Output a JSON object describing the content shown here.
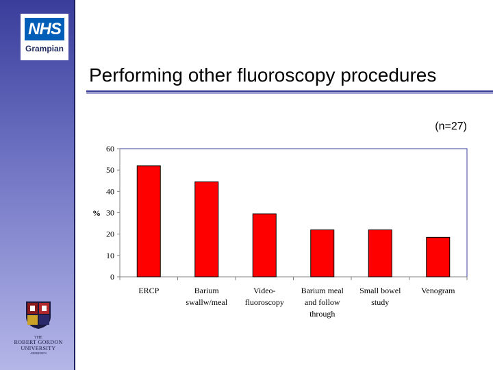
{
  "logos": {
    "nhs": {
      "name": "NHS",
      "region": "Grampian",
      "color": "#005eb8"
    },
    "university": {
      "the": "THE",
      "name_line1": "ROBERT GORDON",
      "name_line2": "UNIVERSITY",
      "city": "ABERDEEN"
    }
  },
  "slide": {
    "title": "Performing other fluoroscopy procedures",
    "sample_size": "(n=27)"
  },
  "colors": {
    "bar": "#ff0000",
    "sidebar": "#3a3d9a",
    "frame": "#3a3d9a"
  },
  "chart_data": {
    "type": "bar",
    "title": "",
    "ylabel": "%",
    "xlabel": "",
    "ylim": [
      0,
      60
    ],
    "yticks": [
      0,
      10,
      20,
      30,
      40,
      50,
      60
    ],
    "grid": false,
    "categories": [
      [
        "ERCP"
      ],
      [
        "Barium",
        "swallw/meal"
      ],
      [
        "Video-",
        "fluoroscopy"
      ],
      [
        "Barium meal",
        "and follow",
        "through"
      ],
      [
        "Small bowel",
        "study"
      ],
      [
        "Venogram"
      ]
    ],
    "values": [
      52,
      44.5,
      29.5,
      22,
      22,
      18.5
    ]
  }
}
